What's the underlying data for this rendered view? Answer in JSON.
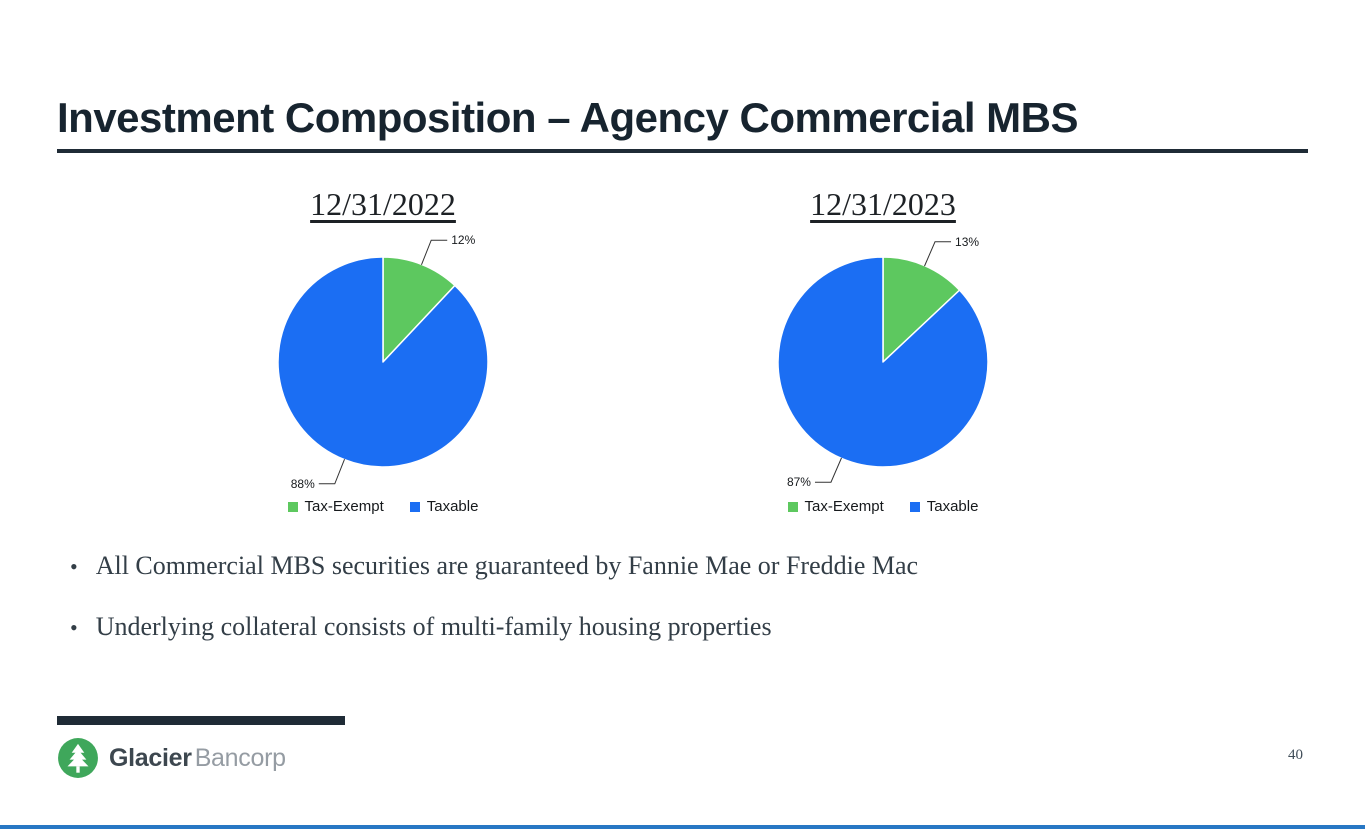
{
  "slide": {
    "title": "Investment Composition – Agency Commercial MBS",
    "bullets": [
      "All Commercial MBS securities are guaranteed by Fannie Mae or Freddie Mac",
      "Underlying collateral consists of multi-family housing properties"
    ],
    "bullet_marker": "•",
    "page_number": "40",
    "brand": {
      "bold": "Glacier",
      "light": "Bancorp"
    },
    "colors": {
      "rule": "#1f2b36",
      "accent_line": "#2777c4",
      "logo_green": "#3fa75b",
      "pie_green": "#5dc85f",
      "pie_blue": "#1b6ef3"
    }
  },
  "chart_data": [
    {
      "type": "pie",
      "title": "12/31/2022",
      "labels": [
        "Tax-Exempt",
        "Taxable"
      ],
      "values": [
        12,
        88
      ],
      "data_labels": [
        "12%",
        "88%"
      ],
      "colors": [
        "#5dc85f",
        "#1b6ef3"
      ],
      "legend_position": "bottom",
      "start_angle_deg": 0
    },
    {
      "type": "pie",
      "title": "12/31/2023",
      "labels": [
        "Tax-Exempt",
        "Taxable"
      ],
      "values": [
        13,
        87
      ],
      "data_labels": [
        "13%",
        "87%"
      ],
      "colors": [
        "#5dc85f",
        "#1b6ef3"
      ],
      "legend_position": "bottom",
      "start_angle_deg": 0
    }
  ]
}
